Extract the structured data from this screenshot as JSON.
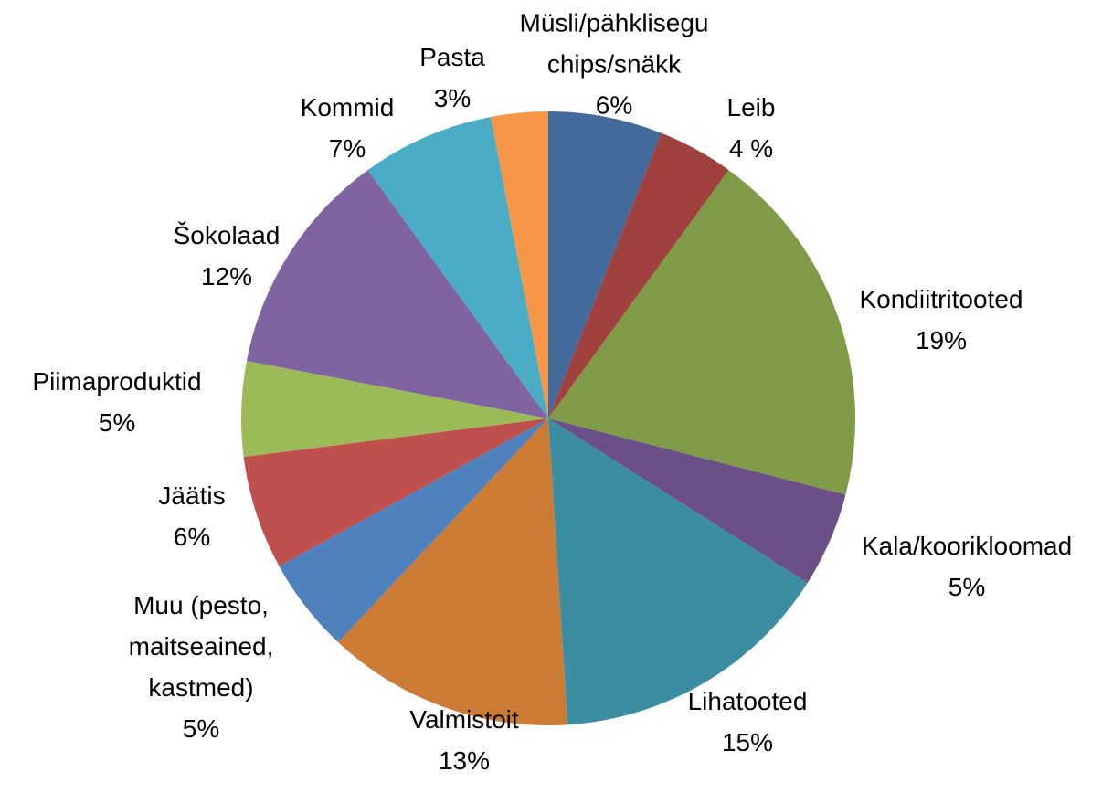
{
  "chart_data": {
    "type": "pie",
    "categories": [
      "Müsli/pähklisegu\nchips/snäkk",
      "Leib",
      "Kondiitritooted",
      "Kala/koorikloomad",
      "Lihatooted",
      "Valmistoit",
      "Muu (pesto,\nmaitseained,\nkastmed)",
      "Jäätis",
      "Piimaproduktid",
      "Šokolaad",
      "Kommid",
      "Pasta"
    ],
    "values": [
      6,
      4,
      19,
      5,
      15,
      13,
      5,
      6,
      5,
      12,
      7,
      3
    ],
    "value_labels": [
      "6%",
      "4 %",
      "19%",
      "5%",
      "15%",
      "13%",
      "5%",
      "6%",
      "5%",
      "12%",
      "7%",
      "3%"
    ],
    "colors": [
      "#426a9a",
      "#a04140",
      "#809b48",
      "#6a5087",
      "#3b8da2",
      "#cc7b35",
      "#4f81bd",
      "#c0504d",
      "#9bbb59",
      "#8064a2",
      "#4bacc6",
      "#f79646"
    ]
  }
}
